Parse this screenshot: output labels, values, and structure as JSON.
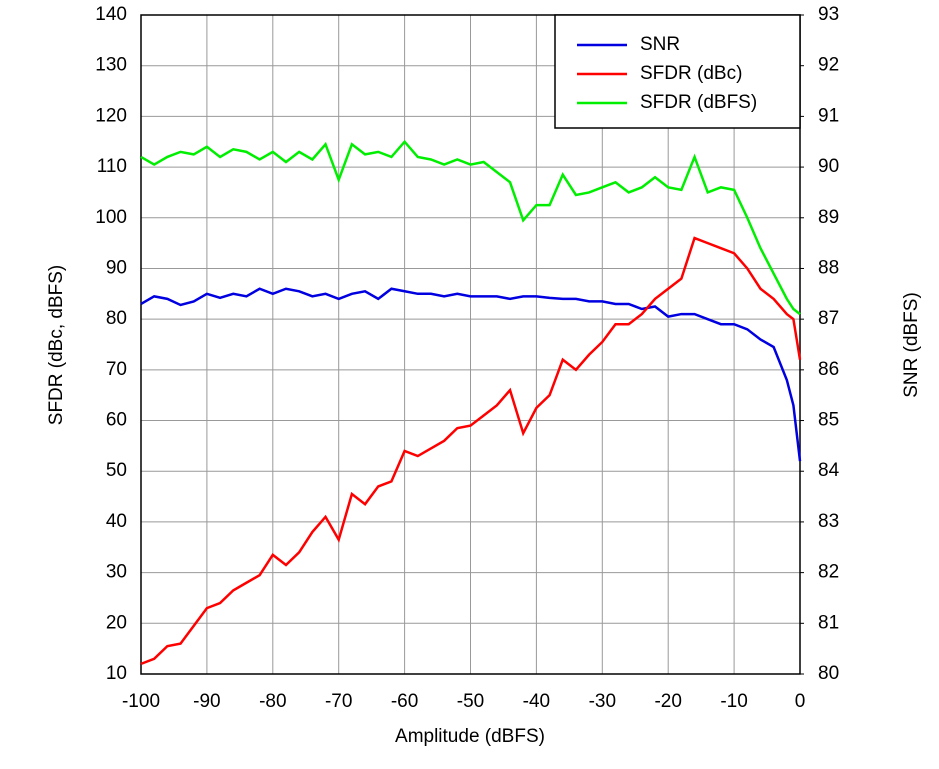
{
  "chart_data": {
    "type": "line",
    "x_label": "Amplitude (dBFS)",
    "y_label": "SFDR (dBc, dBFS)",
    "y2_label": "SNR (dBFS)",
    "x": [
      -100,
      -98,
      -96,
      -94,
      -92,
      -90,
      -88,
      -86,
      -84,
      -82,
      -80,
      -78,
      -76,
      -74,
      -72,
      -70,
      -68,
      -66,
      -64,
      -62,
      -60,
      -58,
      -56,
      -54,
      -52,
      -50,
      -48,
      -46,
      -44,
      -42,
      -40,
      -38,
      -36,
      -34,
      -32,
      -30,
      -28,
      -26,
      -24,
      -22,
      -20,
      -18,
      -16,
      -14,
      -12,
      -10,
      -8,
      -6,
      -4,
      -2,
      -1,
      0
    ],
    "series": [
      {
        "name": "SNR",
        "color": "#0000e0",
        "axis": "y2",
        "values": [
          87.3,
          87.45,
          87.4,
          87.28,
          87.35,
          87.5,
          87.42,
          87.5,
          87.45,
          87.6,
          87.5,
          87.6,
          87.55,
          87.45,
          87.5,
          87.4,
          87.5,
          87.55,
          87.4,
          87.6,
          87.55,
          87.5,
          87.5,
          87.45,
          87.5,
          87.45,
          87.45,
          87.45,
          87.4,
          87.45,
          87.45,
          87.42,
          87.4,
          87.4,
          87.35,
          87.35,
          87.3,
          87.3,
          87.2,
          87.25,
          87.05,
          87.1,
          87.1,
          87.0,
          86.9,
          86.9,
          86.8,
          86.6,
          86.45,
          85.8,
          85.3,
          84.2
        ]
      },
      {
        "name": "SFDR (dBc)",
        "color": "#ff0000",
        "values": [
          12,
          13,
          15.5,
          16,
          19.5,
          23,
          24,
          26.5,
          28,
          29.5,
          33.5,
          31.5,
          34,
          38,
          41,
          36.5,
          45.5,
          43.5,
          47,
          48,
          54,
          53,
          54.5,
          56,
          58.5,
          59,
          61,
          63,
          66,
          57.5,
          62.5,
          65,
          72,
          70,
          73,
          75.5,
          79,
          79,
          81,
          84,
          86,
          88,
          96,
          95,
          94,
          93,
          90,
          86,
          84,
          81,
          80,
          72
        ]
      },
      {
        "name": "SFDR (dBFS)",
        "color": "#00ee00",
        "values": [
          112,
          110.5,
          112,
          113,
          112.5,
          114,
          112,
          113.5,
          113,
          111.5,
          113,
          111,
          113,
          111.5,
          114.5,
          107.5,
          114.5,
          112.5,
          113,
          112,
          115,
          112,
          111.5,
          110.5,
          111.5,
          110.5,
          111,
          109,
          107,
          99.5,
          102.5,
          102.5,
          108.5,
          104.5,
          105,
          106,
          107,
          105,
          106,
          108,
          106,
          105.5,
          112,
          105,
          106,
          105.5,
          100,
          94,
          89,
          84,
          82,
          81
        ]
      }
    ],
    "xlim": [
      -100,
      0
    ],
    "xticks": [
      -100,
      -90,
      -80,
      -70,
      -60,
      -50,
      -40,
      -30,
      -20,
      -10,
      0
    ],
    "ylim": [
      10,
      140
    ],
    "yticks": [
      10,
      20,
      30,
      40,
      50,
      60,
      70,
      80,
      90,
      100,
      110,
      120,
      130,
      140
    ],
    "y2lim": [
      80,
      93
    ],
    "y2ticks": [
      80,
      81,
      82,
      83,
      84,
      85,
      86,
      87,
      88,
      89,
      90,
      91,
      92,
      93
    ],
    "grid": true,
    "legend": "upper right"
  }
}
